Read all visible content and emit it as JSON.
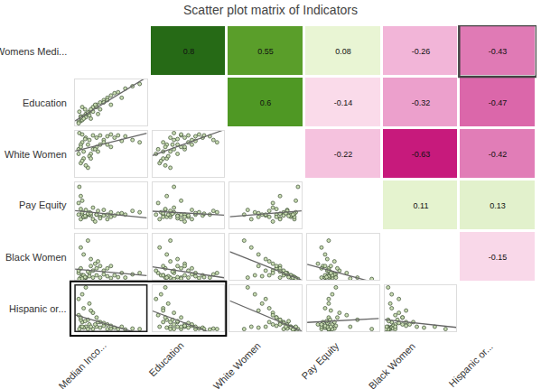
{
  "chart_data": {
    "type": "scatter_matrix",
    "title": "Scatter plot matrix of Indicators",
    "row_labels": [
      "Womens Medi...",
      "Education",
      "White Women",
      "Pay Equity",
      "Black Women",
      "Hispanic or..."
    ],
    "column_labels": [
      "Median Inco...",
      "Education",
      "White Women",
      "Pay Equity",
      "Black Women",
      "Hispanic or..."
    ],
    "correlations": [
      [
        null,
        0.8,
        0.55,
        0.08,
        -0.26,
        -0.43
      ],
      [
        null,
        null,
        0.6,
        -0.14,
        -0.32,
        -0.47
      ],
      [
        null,
        null,
        null,
        -0.22,
        -0.63,
        -0.42
      ],
      [
        null,
        null,
        null,
        null,
        0.11,
        0.13
      ],
      [
        null,
        null,
        null,
        null,
        null,
        -0.15
      ],
      [
        null,
        null,
        null,
        null,
        null,
        null
      ]
    ],
    "zlim": [
      -1,
      1
    ],
    "data_labels": true,
    "observations": [
      [
        0.1,
        0.15,
        0.75,
        0.3,
        0.1,
        0.2
      ],
      [
        0.15,
        0.25,
        0.85,
        0.25,
        0.05,
        0.1
      ],
      [
        0.2,
        0.3,
        0.8,
        0.35,
        0.15,
        0.15
      ],
      [
        0.25,
        0.4,
        0.9,
        0.2,
        0.05,
        0.05
      ],
      [
        0.3,
        0.45,
        0.85,
        0.3,
        0.1,
        0.1
      ],
      [
        0.35,
        0.5,
        0.9,
        0.25,
        0.05,
        0.08
      ],
      [
        0.4,
        0.55,
        0.8,
        0.4,
        0.12,
        0.12
      ],
      [
        0.45,
        0.6,
        0.88,
        0.3,
        0.08,
        0.05
      ],
      [
        0.5,
        0.65,
        0.92,
        0.35,
        0.04,
        0.06
      ],
      [
        0.55,
        0.7,
        0.85,
        0.28,
        0.1,
        0.08
      ],
      [
        0.6,
        0.72,
        0.9,
        0.32,
        0.06,
        0.05
      ],
      [
        0.7,
        0.8,
        0.88,
        0.3,
        0.05,
        0.04
      ],
      [
        0.8,
        0.85,
        0.8,
        0.38,
        0.12,
        0.06
      ],
      [
        0.9,
        0.9,
        0.75,
        0.35,
        0.15,
        0.05
      ],
      [
        0.08,
        0.1,
        0.3,
        0.2,
        0.7,
        0.1
      ],
      [
        0.12,
        0.2,
        0.4,
        0.25,
        0.55,
        0.08
      ],
      [
        0.18,
        0.25,
        0.2,
        0.3,
        0.85,
        0.05
      ],
      [
        0.22,
        0.35,
        0.5,
        0.28,
        0.45,
        0.1
      ],
      [
        0.1,
        0.12,
        0.35,
        0.35,
        0.1,
        0.8
      ],
      [
        0.15,
        0.18,
        0.25,
        0.4,
        0.05,
        0.95
      ],
      [
        0.2,
        0.22,
        0.45,
        0.3,
        0.08,
        0.6
      ],
      [
        0.12,
        0.15,
        0.55,
        0.25,
        0.1,
        0.5
      ],
      [
        0.25,
        0.3,
        0.6,
        0.45,
        0.2,
        0.4
      ],
      [
        0.3,
        0.4,
        0.65,
        0.3,
        0.25,
        0.3
      ],
      [
        0.05,
        0.08,
        0.6,
        0.55,
        0.15,
        0.35
      ],
      [
        0.08,
        0.2,
        0.7,
        0.7,
        0.05,
        0.25
      ],
      [
        0.06,
        0.3,
        0.95,
        0.9,
        0.02,
        0.05
      ],
      [
        0.1,
        0.4,
        0.92,
        0.6,
        0.03,
        0.1
      ],
      [
        0.35,
        0.35,
        0.7,
        0.22,
        0.3,
        0.2
      ],
      [
        0.4,
        0.5,
        0.75,
        0.28,
        0.2,
        0.18
      ],
      [
        0.28,
        0.45,
        0.6,
        0.15,
        0.35,
        0.15
      ],
      [
        0.45,
        0.55,
        0.7,
        0.2,
        0.25,
        0.15
      ],
      [
        0.18,
        0.28,
        0.7,
        0.32,
        0.18,
        0.25
      ],
      [
        0.05,
        0.05,
        0.5,
        0.3,
        0.2,
        0.7
      ],
      [
        0.14,
        0.35,
        0.82,
        0.27,
        0.06,
        0.22
      ],
      [
        0.65,
        0.6,
        0.78,
        0.33,
        0.15,
        0.1
      ],
      [
        0.32,
        0.25,
        0.55,
        0.38,
        0.4,
        0.2
      ],
      [
        0.08,
        0.18,
        0.65,
        0.42,
        0.25,
        0.3
      ],
      [
        0.5,
        0.45,
        0.65,
        0.25,
        0.3,
        0.12
      ],
      [
        0.22,
        0.15,
        0.4,
        0.33,
        0.3,
        0.45
      ]
    ],
    "xlim": [
      0,
      1
    ],
    "ylim": [
      0,
      1
    ],
    "tick_labels": false,
    "marker": "circle"
  }
}
